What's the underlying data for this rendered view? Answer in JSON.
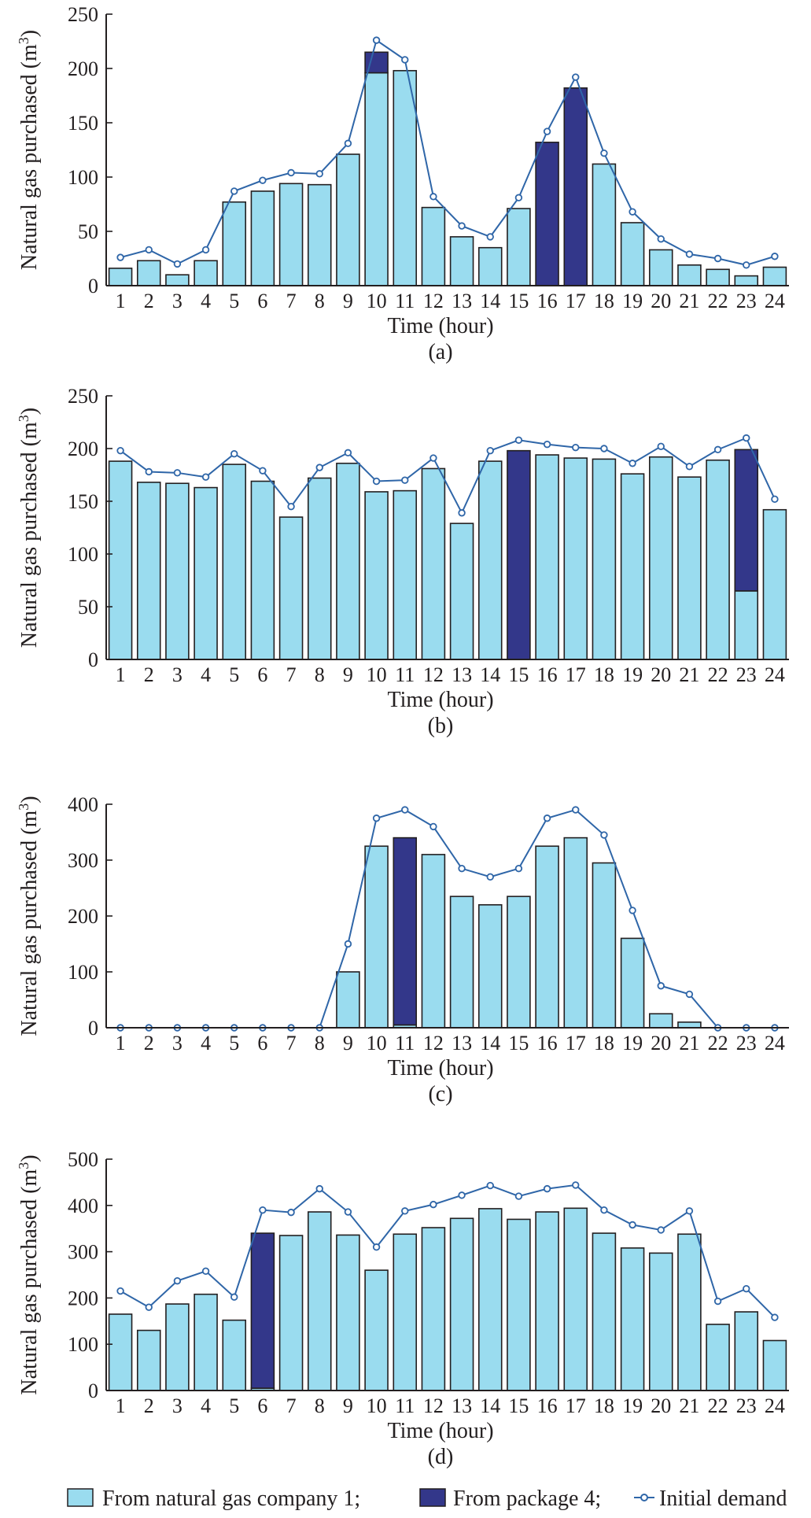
{
  "colors": {
    "company": "#9adcef",
    "package": "#33378a",
    "demand_line": "#2f66a8",
    "axis": "#231f20"
  },
  "legend": {
    "company_label": "From natural gas company 1;",
    "package_label": "From package 4;",
    "demand_label": "Initial demand"
  },
  "chart_data": [
    {
      "type": "bar",
      "panel_label": "(a)",
      "xlabel": "Time (hour)",
      "ylabel": "Natural gas purchased (m",
      "ylabel_sup": "3",
      "ylabel_close": ")",
      "ylim": [
        0,
        250
      ],
      "yticks": [
        "0",
        "50",
        "100",
        "150",
        "200",
        "250"
      ],
      "categories": [
        "1",
        "2",
        "3",
        "4",
        "5",
        "6",
        "7",
        "8",
        "9",
        "10",
        "11",
        "12",
        "13",
        "14",
        "15",
        "16",
        "17",
        "18",
        "19",
        "20",
        "21",
        "22",
        "23",
        "24"
      ],
      "series": [
        {
          "name": "From natural gas company 1",
          "values": [
            16,
            23,
            10,
            23,
            77,
            87,
            94,
            93,
            121,
            196,
            198,
            72,
            45,
            35,
            71,
            0,
            0,
            112,
            58,
            33,
            19,
            15,
            9,
            17
          ]
        },
        {
          "name": "From package 4",
          "values": [
            0,
            0,
            0,
            0,
            0,
            0,
            0,
            0,
            0,
            19,
            0,
            0,
            0,
            0,
            0,
            132,
            182,
            0,
            0,
            0,
            0,
            0,
            0,
            0
          ]
        },
        {
          "name": "Initial demand",
          "values": [
            26,
            33,
            20,
            33,
            87,
            97,
            104,
            103,
            131,
            226,
            208,
            82,
            55,
            45,
            81,
            142,
            192,
            122,
            68,
            43,
            29,
            25,
            19,
            27
          ]
        }
      ]
    },
    {
      "type": "bar",
      "panel_label": "(b)",
      "xlabel": "Time (hour)",
      "ylabel": "Natural gas purchased (m",
      "ylabel_sup": "3",
      "ylabel_close": ")",
      "ylim": [
        0,
        250
      ],
      "yticks": [
        "0",
        "50",
        "100",
        "150",
        "200",
        "250"
      ],
      "categories": [
        "1",
        "2",
        "3",
        "4",
        "5",
        "6",
        "7",
        "8",
        "9",
        "10",
        "11",
        "12",
        "13",
        "14",
        "15",
        "16",
        "17",
        "18",
        "19",
        "20",
        "21",
        "22",
        "23",
        "24"
      ],
      "series": [
        {
          "name": "From natural gas company 1",
          "values": [
            188,
            168,
            167,
            163,
            185,
            169,
            135,
            172,
            186,
            159,
            160,
            181,
            129,
            188,
            0,
            194,
            191,
            190,
            176,
            192,
            173,
            189,
            65,
            142
          ]
        },
        {
          "name": "From package 4",
          "values": [
            0,
            0,
            0,
            0,
            0,
            0,
            0,
            0,
            0,
            0,
            0,
            0,
            0,
            0,
            198,
            0,
            0,
            0,
            0,
            0,
            0,
            0,
            134,
            0
          ]
        },
        {
          "name": "Initial demand",
          "values": [
            198,
            178,
            177,
            173,
            195,
            179,
            145,
            182,
            196,
            169,
            170,
            191,
            139,
            198,
            208,
            204,
            201,
            200,
            186,
            202,
            183,
            199,
            210,
            152
          ]
        }
      ]
    },
    {
      "type": "bar",
      "panel_label": "(c)",
      "xlabel": "Time (hour)",
      "ylabel": "Natural gas purchased (m",
      "ylabel_sup": "3",
      "ylabel_close": ")",
      "ylim": [
        0,
        400
      ],
      "yticks": [
        "0",
        "100",
        "200",
        "300",
        "400"
      ],
      "categories": [
        "1",
        "2",
        "3",
        "4",
        "5",
        "6",
        "7",
        "8",
        "9",
        "10",
        "11",
        "12",
        "13",
        "14",
        "15",
        "16",
        "17",
        "18",
        "19",
        "20",
        "21",
        "22",
        "23",
        "24"
      ],
      "series": [
        {
          "name": "From natural gas company 1",
          "values": [
            0,
            0,
            0,
            0,
            0,
            0,
            0,
            0,
            100,
            325,
            5,
            310,
            235,
            220,
            235,
            325,
            340,
            295,
            160,
            25,
            10,
            0,
            0,
            0
          ]
        },
        {
          "name": "From package 4",
          "values": [
            0,
            0,
            0,
            0,
            0,
            0,
            0,
            0,
            0,
            0,
            335,
            0,
            0,
            0,
            0,
            0,
            0,
            0,
            0,
            0,
            0,
            0,
            0,
            0
          ]
        },
        {
          "name": "Initial demand",
          "values": [
            0,
            0,
            0,
            0,
            0,
            0,
            0,
            0,
            150,
            375,
            390,
            360,
            285,
            270,
            285,
            375,
            390,
            345,
            210,
            75,
            60,
            0,
            0,
            0
          ]
        }
      ]
    },
    {
      "type": "bar",
      "panel_label": "(d)",
      "xlabel": "Time (hour)",
      "ylabel": "Natural gas purchased (m",
      "ylabel_sup": "3",
      "ylabel_close": ")",
      "ylim": [
        0,
        500
      ],
      "yticks": [
        "0",
        "100",
        "200",
        "300",
        "400",
        "500"
      ],
      "categories": [
        "1",
        "2",
        "3",
        "4",
        "5",
        "6",
        "7",
        "8",
        "9",
        "10",
        "11",
        "12",
        "13",
        "14",
        "15",
        "16",
        "17",
        "18",
        "19",
        "20",
        "21",
        "22",
        "23",
        "24"
      ],
      "series": [
        {
          "name": "From natural gas company 1",
          "values": [
            165,
            130,
            187,
            208,
            152,
            5,
            335,
            386,
            336,
            260,
            338,
            352,
            372,
            393,
            370,
            386,
            394,
            340,
            308,
            297,
            338,
            143,
            170,
            108
          ]
        },
        {
          "name": "From package 4",
          "values": [
            0,
            0,
            0,
            0,
            0,
            335,
            0,
            0,
            0,
            0,
            0,
            0,
            0,
            0,
            0,
            0,
            0,
            0,
            0,
            0,
            0,
            0,
            0,
            0
          ]
        },
        {
          "name": "Initial demand",
          "values": [
            215,
            180,
            237,
            258,
            202,
            390,
            385,
            436,
            386,
            310,
            388,
            402,
            422,
            443,
            420,
            436,
            444,
            390,
            358,
            347,
            388,
            193,
            220,
            158
          ]
        }
      ]
    }
  ]
}
